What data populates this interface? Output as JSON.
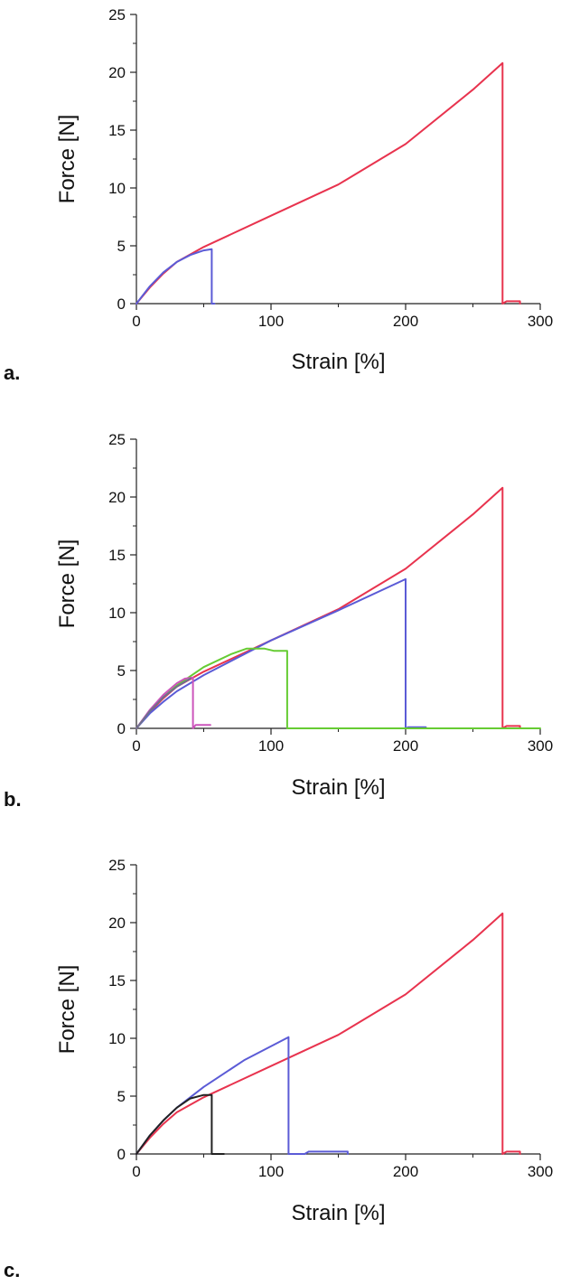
{
  "chart_data": [
    {
      "type": "line",
      "panel_label": "a.",
      "xlabel": "Strain [%]",
      "ylabel": "Force [N]",
      "xlim": [
        0,
        300
      ],
      "ylim": [
        0,
        25
      ],
      "xticks": [
        0,
        100,
        200,
        300
      ],
      "yticks": [
        0,
        5,
        10,
        15,
        20,
        25
      ],
      "grid": false,
      "series": [
        {
          "color": "#e8334e",
          "points": [
            [
              0,
              0
            ],
            [
              10,
              1.4
            ],
            [
              20,
              2.6
            ],
            [
              30,
              3.6
            ],
            [
              50,
              4.9
            ],
            [
              100,
              7.6
            ],
            [
              150,
              10.3
            ],
            [
              200,
              13.8
            ],
            [
              250,
              18.5
            ],
            [
              272,
              20.8
            ],
            [
              272,
              0
            ],
            [
              275,
              0.2
            ],
            [
              285,
              0.2
            ],
            [
              285,
              0
            ]
          ]
        },
        {
          "color": "#5b5bd6",
          "points": [
            [
              0,
              0
            ],
            [
              10,
              1.5
            ],
            [
              20,
              2.7
            ],
            [
              30,
              3.6
            ],
            [
              40,
              4.2
            ],
            [
              50,
              4.6
            ],
            [
              56,
              4.7
            ],
            [
              56,
              0
            ],
            [
              58,
              0
            ]
          ]
        }
      ]
    },
    {
      "type": "line",
      "panel_label": "b.",
      "xlabel": "Strain [%]",
      "ylabel": "Force [N]",
      "xlim": [
        0,
        300
      ],
      "ylim": [
        0,
        25
      ],
      "xticks": [
        0,
        100,
        200,
        300
      ],
      "yticks": [
        0,
        5,
        10,
        15,
        20,
        25
      ],
      "grid": false,
      "series": [
        {
          "color": "#e8334e",
          "points": [
            [
              0,
              0
            ],
            [
              10,
              1.4
            ],
            [
              20,
              2.6
            ],
            [
              30,
              3.6
            ],
            [
              50,
              4.9
            ],
            [
              100,
              7.6
            ],
            [
              150,
              10.3
            ],
            [
              200,
              13.8
            ],
            [
              250,
              18.5
            ],
            [
              272,
              20.8
            ],
            [
              272,
              0
            ],
            [
              275,
              0.2
            ],
            [
              285,
              0.2
            ],
            [
              285,
              0
            ]
          ]
        },
        {
          "color": "#5b5bd6",
          "points": [
            [
              0,
              0
            ],
            [
              10,
              1.3
            ],
            [
              20,
              2.3
            ],
            [
              30,
              3.2
            ],
            [
              50,
              4.6
            ],
            [
              100,
              7.6
            ],
            [
              150,
              10.2
            ],
            [
              200,
              12.9
            ],
            [
              200,
              0
            ],
            [
              202,
              0.1
            ],
            [
              215,
              0.1
            ],
            [
              215,
              0
            ]
          ]
        },
        {
          "color": "#66cc33",
          "points": [
            [
              0,
              0
            ],
            [
              10,
              1.5
            ],
            [
              20,
              2.7
            ],
            [
              30,
              3.7
            ],
            [
              50,
              5.3
            ],
            [
              70,
              6.4
            ],
            [
              82,
              6.9
            ],
            [
              95,
              6.9
            ],
            [
              102,
              6.7
            ],
            [
              112,
              6.7
            ],
            [
              112,
              0
            ],
            [
              300,
              0
            ]
          ]
        },
        {
          "color": "#cc55bb",
          "points": [
            [
              0,
              0
            ],
            [
              10,
              1.6
            ],
            [
              20,
              2.9
            ],
            [
              30,
              3.9
            ],
            [
              36,
              4.3
            ],
            [
              42,
              4.4
            ],
            [
              42,
              0
            ],
            [
              44,
              0.3
            ],
            [
              55,
              0.3
            ]
          ]
        },
        {
          "color": "#6f6f8f",
          "points": [
            [
              0,
              0
            ],
            [
              10,
              1.5
            ],
            [
              20,
              2.7
            ],
            [
              30,
              3.6
            ],
            [
              40,
              4.3
            ]
          ]
        }
      ]
    },
    {
      "type": "line",
      "panel_label": "c.",
      "xlabel": "Strain [%]",
      "ylabel": "Force [N]",
      "xlim": [
        0,
        300
      ],
      "ylim": [
        0,
        25
      ],
      "xticks": [
        0,
        100,
        200,
        300
      ],
      "yticks": [
        0,
        5,
        10,
        15,
        20,
        25
      ],
      "grid": false,
      "series": [
        {
          "color": "#e8334e",
          "points": [
            [
              0,
              0
            ],
            [
              10,
              1.4
            ],
            [
              20,
              2.6
            ],
            [
              30,
              3.6
            ],
            [
              50,
              4.9
            ],
            [
              100,
              7.6
            ],
            [
              150,
              10.3
            ],
            [
              200,
              13.8
            ],
            [
              250,
              18.5
            ],
            [
              272,
              20.8
            ],
            [
              272,
              0
            ],
            [
              275,
              0.2
            ],
            [
              285,
              0.2
            ],
            [
              285,
              0
            ]
          ]
        },
        {
          "color": "#5b5bd6",
          "points": [
            [
              0,
              0
            ],
            [
              10,
              1.6
            ],
            [
              20,
              2.9
            ],
            [
              30,
              4.0
            ],
            [
              50,
              5.8
            ],
            [
              80,
              8.1
            ],
            [
              113,
              10.1
            ],
            [
              113,
              0
            ],
            [
              125,
              0
            ],
            [
              128,
              0.2
            ],
            [
              157,
              0.2
            ],
            [
              157,
              0
            ]
          ]
        },
        {
          "color": "#222222",
          "points": [
            [
              0,
              0
            ],
            [
              10,
              1.6
            ],
            [
              20,
              2.9
            ],
            [
              30,
              4.0
            ],
            [
              40,
              4.8
            ],
            [
              50,
              5.1
            ],
            [
              56,
              5.1
            ],
            [
              56,
              0
            ],
            [
              65,
              0
            ]
          ]
        }
      ]
    }
  ]
}
